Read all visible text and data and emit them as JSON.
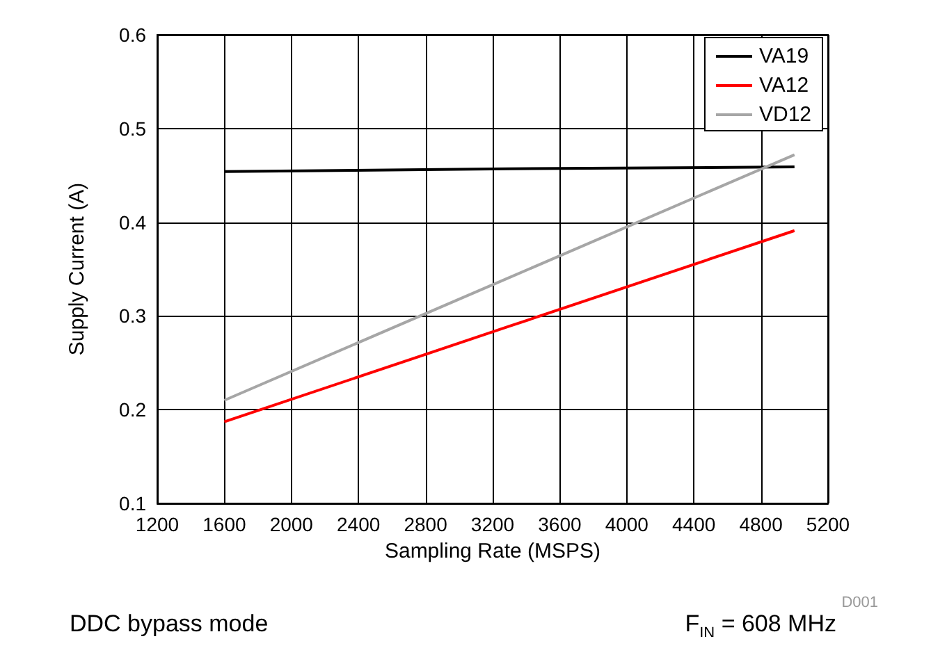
{
  "chart_data": {
    "type": "line",
    "xlabel": "Sampling Rate (MSPS)",
    "ylabel": "Supply Current (A)",
    "x": [
      1600,
      3300,
      5000
    ],
    "series": [
      {
        "name": "VA19",
        "color": "#000000",
        "values": [
          0.454,
          0.457,
          0.459
        ]
      },
      {
        "name": "VA12",
        "color": "#ff0000",
        "values": [
          0.187,
          0.289,
          0.391
        ]
      },
      {
        "name": "VD12",
        "color": "#a6a6a6",
        "values": [
          0.21,
          0.341,
          0.472
        ]
      }
    ],
    "xlim": [
      1200,
      5200
    ],
    "xticks": [
      1200,
      1600,
      2000,
      2400,
      2800,
      3200,
      3600,
      4000,
      4400,
      4800,
      5200
    ],
    "ylim": [
      0.1,
      0.6
    ],
    "yticks": [
      0.1,
      0.2,
      0.3,
      0.4,
      0.5,
      0.6
    ],
    "grid": true,
    "legend": "top right",
    "marker": "none",
    "line_style": "solid",
    "annotations": [
      "D001",
      "DDC bypass mode",
      "F$_{IN}$ = 608 MHz"
    ]
  }
}
